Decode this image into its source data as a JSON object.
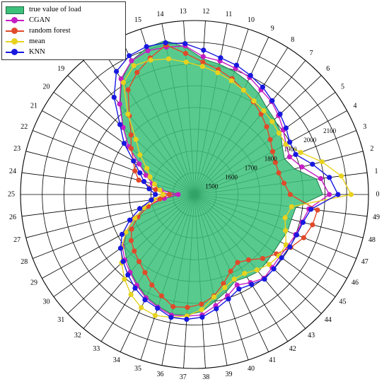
{
  "chart_data": {
    "type": "radar",
    "title": "",
    "angle_labels": [
      "0",
      "1",
      "2",
      "3",
      "4",
      "5",
      "6",
      "7",
      "8",
      "9",
      "10",
      "11",
      "12",
      "13",
      "14",
      "15",
      "16",
      "17",
      "18",
      "19",
      "20",
      "21",
      "22",
      "23",
      "24",
      "25",
      "26",
      "27",
      "28",
      "29",
      "30",
      "31",
      "32",
      "33",
      "34",
      "35",
      "36",
      "37",
      "38",
      "39",
      "40",
      "41",
      "42",
      "43",
      "44",
      "45",
      "46",
      "47",
      "48",
      "49"
    ],
    "radial_ticks": [
      1500,
      1600,
      1700,
      1800,
      1900,
      2000,
      2100
    ],
    "rlim": [
      1400,
      2200
    ],
    "legend_position": "top-left",
    "grid": true,
    "series": [
      {
        "name": "true value of load",
        "style": "area",
        "color": "#3cc17a",
        "values": [
          1990,
          1965,
          1875,
          1845,
          1860,
          1890,
          1905,
          1920,
          1950,
          1975,
          1995,
          2010,
          2025,
          2080,
          2120,
          2110,
          2080,
          2025,
          1935,
          1850,
          1775,
          1690,
          1630,
          1590,
          1550,
          1470,
          1545,
          1630,
          1700,
          1760,
          1800,
          1830,
          1860,
          1890,
          1920,
          1940,
          1960,
          1955,
          1940,
          1900,
          1870,
          1840,
          1850,
          1860,
          1855,
          1850,
          1850,
          1860,
          1860,
          1870
        ]
      },
      {
        "name": "CGAN",
        "style": "line",
        "color": "#c41ec4",
        "values": [
          2020,
          1985,
          1910,
          1870,
          1880,
          1905,
          1930,
          1955,
          1970,
          1995,
          2010,
          2025,
          2035,
          2085,
          2090,
          2095,
          2080,
          2030,
          1940,
          1850,
          1775,
          1690,
          1640,
          1600,
          1555,
          1475,
          1540,
          1635,
          1700,
          1760,
          1810,
          1840,
          1865,
          1895,
          1925,
          1945,
          1965,
          1960,
          1955,
          1920,
          1890,
          1860,
          1880,
          1900,
          1890,
          1885,
          1890,
          1900,
          1910,
          1930
        ]
      },
      {
        "name": "random forest",
        "style": "line",
        "color": "#e04a2a",
        "values": [
          1840,
          1815,
          1800,
          1800,
          1810,
          1830,
          1855,
          1880,
          1905,
          1930,
          1960,
          1985,
          2010,
          2050,
          2100,
          2060,
          2020,
          1970,
          1870,
          1800,
          1760,
          1720,
          1695,
          1665,
          1580,
          1515,
          1560,
          1620,
          1680,
          1730,
          1760,
          1780,
          1800,
          1825,
          1860,
          1890,
          1925,
          1920,
          1905,
          1875,
          1830,
          1790,
          1770,
          1790,
          1830,
          1865,
          1905,
          1940,
          1960,
          1970
        ]
      },
      {
        "name": "mean",
        "style": "line",
        "color": "#e8d21e",
        "values": [
          2120,
          2080,
          2005,
          1925,
          1880,
          1880,
          1890,
          1900,
          1910,
          1930,
          1950,
          1970,
          1990,
          2010,
          2035,
          2050,
          2055,
          2010,
          1880,
          1770,
          1710,
          1650,
          1620,
          1590,
          1560,
          1545,
          1590,
          1640,
          1695,
          1760,
          1815,
          1860,
          1905,
          1945,
          1975,
          1985,
          1975,
          1960,
          1930,
          1880,
          1850,
          1830,
          1830,
          1850,
          1870,
          1880,
          1880,
          1850,
          1830,
          1850
        ]
      },
      {
        "name": "KNN",
        "style": "line",
        "color": "#1818e0",
        "values": [
          2060,
          2025,
          1960,
          1900,
          1900,
          1920,
          1940,
          1960,
          1985,
          2005,
          2025,
          2040,
          2065,
          2095,
          2110,
          2115,
          2105,
          2070,
          1980,
          1870,
          1800,
          1720,
          1670,
          1640,
          1610,
          1580,
          1600,
          1660,
          1720,
          1780,
          1820,
          1850,
          1880,
          1910,
          1935,
          1950,
          1975,
          1975,
          1965,
          1935,
          1905,
          1880,
          1890,
          1905,
          1900,
          1895,
          1900,
          1905,
          1915,
          1940
        ]
      }
    ]
  }
}
